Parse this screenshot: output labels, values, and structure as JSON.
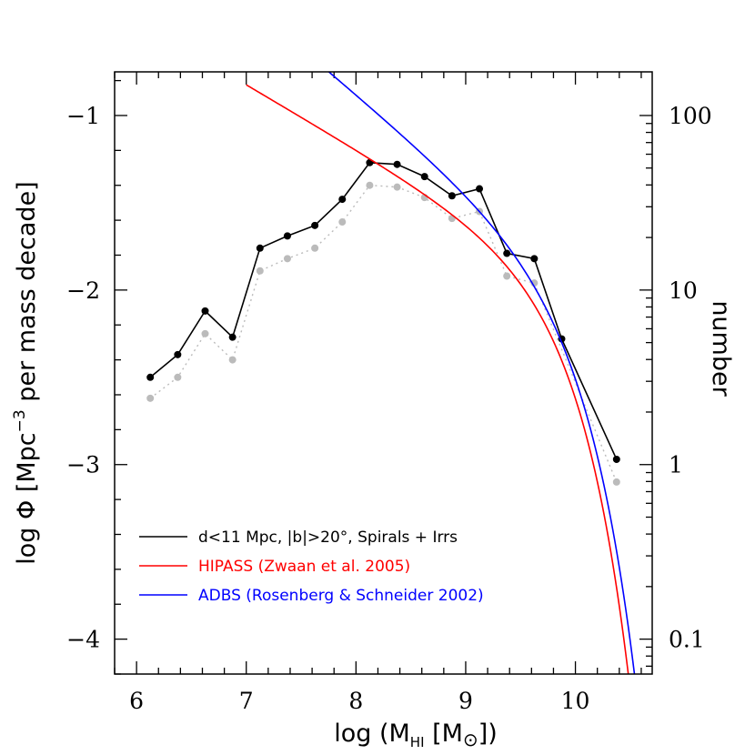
{
  "chart_data": {
    "type": "line",
    "xlabel": {
      "prefix": "log (M",
      "sub": "HI",
      "mid": " [M",
      "sun": "⊙",
      "suffix": "])"
    },
    "ylabel": {
      "prefix": "log Φ [Mpc",
      "sup": "−3",
      "suffix": " per mass decade]"
    },
    "ylabel_right": "number",
    "xlim": [
      5.8,
      10.7
    ],
    "ylim": [
      -4.2,
      -0.75
    ],
    "x_ticks": [
      6,
      7,
      8,
      9,
      10
    ],
    "x_tick_labels": [
      "6",
      "7",
      "8",
      "9",
      "10"
    ],
    "y_ticks": [
      -1,
      -2,
      -3,
      -4
    ],
    "y_tick_labels": [
      "−1",
      "−2",
      "−3",
      "−4"
    ],
    "right_axis": {
      "scale": "log",
      "tick_values": [
        100,
        10,
        1,
        0.1
      ],
      "tick_labels": [
        "100",
        "10",
        "1",
        "0.1"
      ],
      "y_at": [
        -1.0,
        -2.0,
        -3.0,
        -4.0
      ]
    },
    "series": [
      {
        "name": "d<11 Mpc, |b|>20°, Spirals + Irrs",
        "color": "#000000",
        "style": "solid-markers",
        "x": [
          6.125,
          6.375,
          6.625,
          6.875,
          7.125,
          7.375,
          7.625,
          7.875,
          8.125,
          8.375,
          8.625,
          8.875,
          9.125,
          9.375,
          9.625,
          9.875,
          10.375
        ],
        "y": [
          -2.5,
          -2.37,
          -2.12,
          -2.27,
          -1.76,
          -1.69,
          -1.63,
          -1.48,
          -1.27,
          -1.28,
          -1.35,
          -1.46,
          -1.42,
          -1.79,
          -1.82,
          -2.28,
          -2.97
        ]
      },
      {
        "color": "#bbbbbb",
        "style": "dotted-markers",
        "x": [
          6.125,
          6.375,
          6.625,
          6.875,
          7.125,
          7.375,
          7.625,
          7.875,
          8.125,
          8.375,
          8.625,
          8.875,
          9.125,
          9.375,
          9.625,
          10.375
        ],
        "y": [
          -2.62,
          -2.5,
          -2.25,
          -2.4,
          -1.89,
          -1.82,
          -1.76,
          -1.61,
          -1.4,
          -1.41,
          -1.47,
          -1.59,
          -1.55,
          -1.92,
          -1.96,
          -3.1
        ]
      },
      {
        "name": "HIPASS (Zwaan et al. 2005)",
        "color": "#ff0000",
        "style": "curve",
        "schechter": {
          "phi_star": 0.006,
          "m_star": 9.8,
          "alpha": -1.37
        },
        "x_range": [
          7.0,
          10.7
        ]
      },
      {
        "name": "ADBS (Rosenberg & Schneider 2002)",
        "color": "#0000ff",
        "style": "curve",
        "schechter": {
          "phi_star": 0.0058,
          "m_star": 9.88,
          "alpha": -1.53
        },
        "x_range": [
          7.0,
          10.7
        ]
      }
    ],
    "legend": {
      "placement": "bottom-left",
      "entries": [
        {
          "label": "d<11 Mpc, |b|>20°, Spirals + Irrs",
          "color": "#000000"
        },
        {
          "label": "HIPASS (Zwaan et al. 2005)",
          "color": "#ff0000"
        },
        {
          "label": "ADBS (Rosenberg & Schneider 2002)",
          "color": "#0000ff"
        }
      ]
    }
  }
}
